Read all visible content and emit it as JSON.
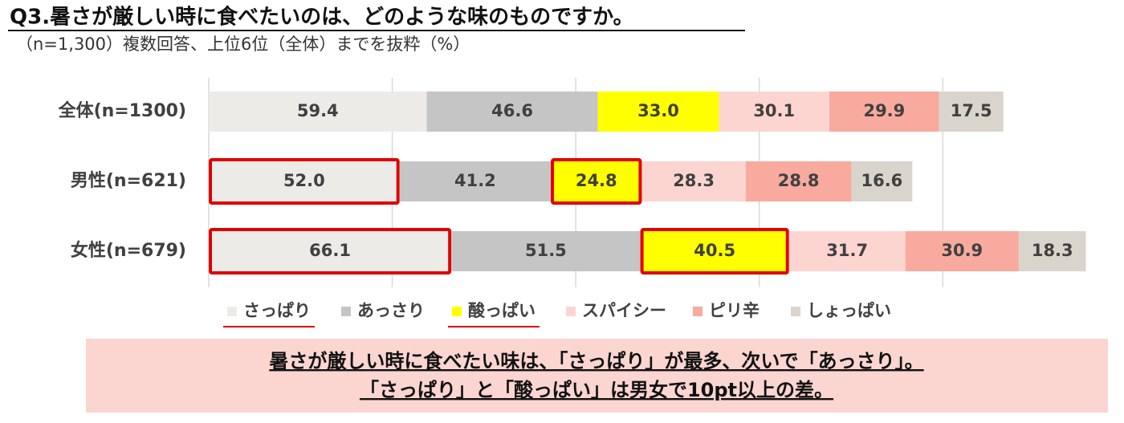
{
  "chart_data": {
    "type": "stacked-bar-horizontal",
    "title": "Q3.暑さが厳しい時に食べたいのは、どのような味のものですか。",
    "subtitle": "（n=1,300）複数回答、上位6位（全体）までを抜粋（%）",
    "categories": [
      "全体(n=1300)",
      "男性(n=621)",
      "女性(n=679)"
    ],
    "series": [
      {
        "name": "さっぱり",
        "color": "#edebe7",
        "values": [
          59.4,
          52.0,
          66.1
        ],
        "value_labels": [
          "59.4",
          "52.0",
          "66.1"
        ]
      },
      {
        "name": "あっさり",
        "color": "#c5c5c5",
        "values": [
          46.6,
          41.2,
          51.5
        ],
        "value_labels": [
          "46.6",
          "41.2",
          "51.5"
        ]
      },
      {
        "name": "酸っぱい",
        "color": "#ffff00",
        "values": [
          33.0,
          24.8,
          40.5
        ],
        "value_labels": [
          "33.0",
          "24.8",
          "40.5"
        ]
      },
      {
        "name": "スパイシー",
        "color": "#fdd5d0",
        "values": [
          30.1,
          28.3,
          31.7
        ],
        "value_labels": [
          "30.1",
          "28.3",
          "31.7"
        ]
      },
      {
        "name": "ピリ辛",
        "color": "#f8aa9e",
        "values": [
          29.9,
          28.8,
          30.9
        ],
        "value_labels": [
          "29.9",
          "28.8",
          "30.9"
        ]
      },
      {
        "name": "しょっぱい",
        "color": "#d9d5cc",
        "values": [
          17.5,
          16.6,
          18.3
        ],
        "value_labels": [
          "17.5",
          "16.6",
          "18.3"
        ]
      }
    ],
    "xlim": [
      0,
      245
    ],
    "xticks": [
      0,
      50,
      100,
      150,
      200
    ],
    "grid": true,
    "highlight": {
      "series": [
        0,
        2
      ],
      "rows": [
        1,
        2
      ],
      "color": "#e00000"
    },
    "summary": [
      "暑さが厳しい時に食べたい味は、「さっぱり」が最多、次いで「あっさり」。",
      "「さっぱり」と「酸っぱい」は男女で10pt以上の差。"
    ]
  }
}
